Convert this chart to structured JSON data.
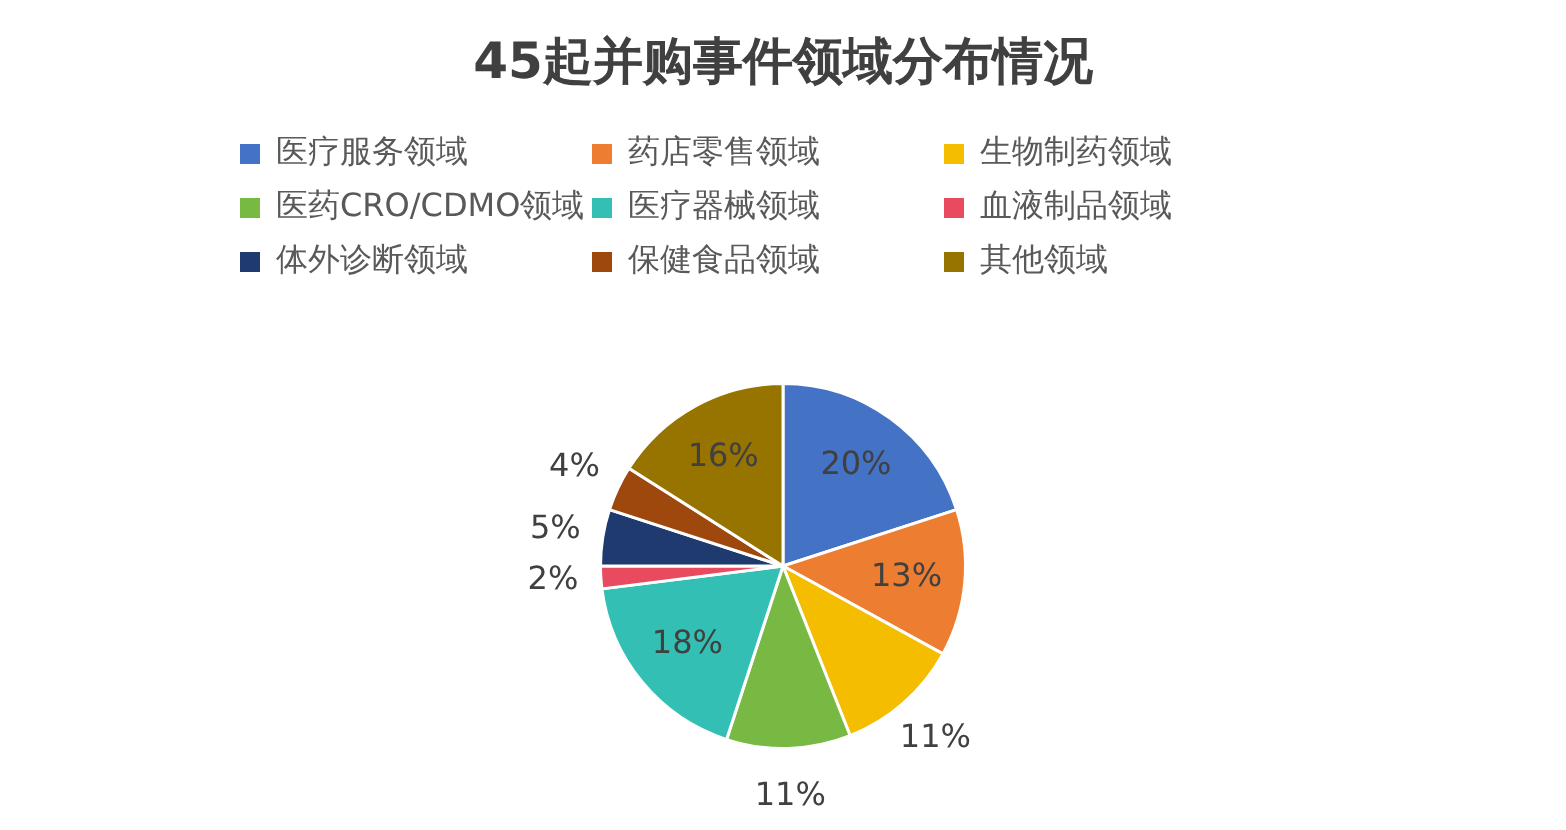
{
  "chart_data": {
    "type": "pie",
    "title": "45起并购事件领域分布情况",
    "categories": [
      "医疗服务领域",
      "药店零售领域",
      "生物制药领域",
      "医药CRO/CDMO领域",
      "医疗器械领域",
      "血液制品领域",
      "体外诊断领域",
      "保健食品领域",
      "其他领域"
    ],
    "values": [
      20,
      13,
      11,
      11,
      18,
      2,
      5,
      4,
      16
    ],
    "colors": [
      "#4472c4",
      "#ed7d31",
      "#f5bd00",
      "#78b943",
      "#33bfb3",
      "#e84a5f",
      "#1f3a6e",
      "#9e480e",
      "#977300"
    ],
    "value_labels": [
      "20%",
      "13%",
      "11%",
      "11%",
      "18%",
      "2%",
      "5%",
      "4%",
      "16%"
    ],
    "legend": "top"
  }
}
